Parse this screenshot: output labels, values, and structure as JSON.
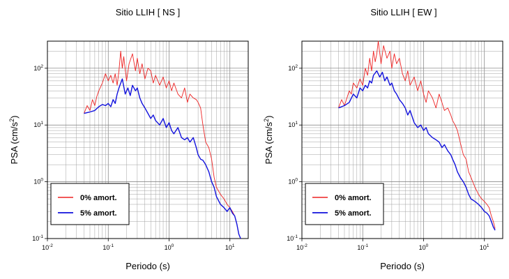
{
  "chart_data": [
    {
      "type": "line",
      "title": "Sitio LLIH [ NS ]",
      "xlabel": "Periodo (s)",
      "ylabel": "PSA (cm/s2)",
      "xscale": "log",
      "yscale": "log",
      "xlim": [
        0.01,
        20
      ],
      "ylim": [
        0.1,
        300
      ],
      "grid": true,
      "legend_position": "bottom-left",
      "x_ticks": [
        "10-2",
        "10-1",
        "100",
        "101"
      ],
      "y_ticks": [
        "10-1",
        "100",
        "101",
        "102"
      ],
      "series": [
        {
          "name": "0% amort.",
          "color": "#ee2222",
          "x": [
            0.04,
            0.045,
            0.05,
            0.055,
            0.06,
            0.065,
            0.07,
            0.08,
            0.09,
            0.1,
            0.11,
            0.12,
            0.13,
            0.14,
            0.15,
            0.16,
            0.17,
            0.18,
            0.2,
            0.22,
            0.25,
            0.28,
            0.3,
            0.33,
            0.36,
            0.4,
            0.45,
            0.5,
            0.55,
            0.6,
            0.7,
            0.8,
            0.9,
            1.0,
            1.1,
            1.2,
            1.4,
            1.6,
            1.8,
            2.0,
            2.2,
            2.5,
            2.8,
            3.0,
            3.3,
            3.6,
            4.0,
            4.5,
            5.0,
            5.5,
            6.0,
            7.0,
            8.0,
            9.0,
            10.0,
            11.0,
            12.0,
            13.0,
            14.0,
            15.0
          ],
          "values": [
            16,
            22,
            18,
            28,
            22,
            32,
            40,
            55,
            80,
            60,
            75,
            55,
            80,
            50,
            90,
            200,
            100,
            160,
            60,
            120,
            180,
            90,
            150,
            80,
            120,
            65,
            100,
            90,
            55,
            75,
            50,
            70,
            45,
            60,
            40,
            55,
            35,
            30,
            45,
            25,
            35,
            30,
            28,
            25,
            20,
            10,
            5,
            4,
            2.5,
            1.2,
            0.8,
            0.6,
            0.5,
            0.4,
            0.35,
            0.3,
            0.25,
            0.18,
            0.12,
            0.1
          ]
        },
        {
          "name": "5% amort.",
          "color": "#1111dd",
          "x": [
            0.04,
            0.05,
            0.06,
            0.07,
            0.08,
            0.09,
            0.1,
            0.11,
            0.12,
            0.13,
            0.14,
            0.15,
            0.17,
            0.19,
            0.21,
            0.23,
            0.25,
            0.28,
            0.3,
            0.33,
            0.36,
            0.4,
            0.45,
            0.5,
            0.55,
            0.6,
            0.7,
            0.8,
            0.9,
            1.0,
            1.1,
            1.2,
            1.4,
            1.6,
            1.8,
            2.0,
            2.2,
            2.5,
            2.8,
            3.0,
            3.3,
            3.6,
            4.0,
            4.5,
            5.0,
            5.5,
            6.0,
            7.0,
            8.0,
            9.0,
            10.0,
            11.0,
            12.0,
            13.0,
            14.0,
            15.0
          ],
          "values": [
            16,
            17,
            18,
            21,
            23,
            22,
            24,
            21,
            28,
            24,
            35,
            45,
            65,
            35,
            45,
            33,
            50,
            40,
            45,
            30,
            24,
            20,
            16,
            13,
            15,
            12,
            10,
            13,
            9,
            11,
            8,
            7,
            9,
            6,
            5.5,
            6,
            5,
            6,
            4,
            3,
            2.5,
            2.4,
            2,
            1.5,
            1,
            0.8,
            0.55,
            0.4,
            0.35,
            0.3,
            0.35,
            0.28,
            0.25,
            0.18,
            0.12,
            0.1
          ]
        }
      ]
    },
    {
      "type": "line",
      "title": "Sitio LLIH [ EW ]",
      "xlabel": "Periodo (s)",
      "ylabel": "PSA (cm/s2)",
      "xscale": "log",
      "yscale": "log",
      "xlim": [
        0.01,
        20
      ],
      "ylim": [
        0.1,
        300
      ],
      "grid": true,
      "legend_position": "bottom-left",
      "x_ticks": [
        "10-2",
        "10-1",
        "100",
        "101"
      ],
      "y_ticks": [
        "10-1",
        "100",
        "101",
        "102"
      ],
      "series": [
        {
          "name": "0% amort.",
          "color": "#ee2222",
          "x": [
            0.04,
            0.045,
            0.05,
            0.055,
            0.06,
            0.065,
            0.07,
            0.08,
            0.09,
            0.1,
            0.11,
            0.12,
            0.13,
            0.14,
            0.15,
            0.16,
            0.17,
            0.18,
            0.2,
            0.22,
            0.25,
            0.28,
            0.3,
            0.33,
            0.36,
            0.4,
            0.45,
            0.5,
            0.55,
            0.6,
            0.7,
            0.8,
            0.9,
            1.0,
            1.1,
            1.2,
            1.4,
            1.6,
            1.8,
            2.0,
            2.2,
            2.5,
            2.8,
            3.0,
            3.3,
            3.6,
            4.0,
            4.5,
            5.0,
            5.5,
            6.0,
            7.0,
            8.0,
            9.0,
            10.0,
            11.0,
            12.0,
            13.0,
            14.0,
            15.0
          ],
          "values": [
            20,
            28,
            22,
            30,
            40,
            35,
            55,
            45,
            65,
            50,
            100,
            75,
            150,
            90,
            200,
            130,
            180,
            300,
            120,
            250,
            150,
            200,
            100,
            180,
            120,
            150,
            80,
            60,
            90,
            50,
            70,
            40,
            60,
            35,
            25,
            40,
            30,
            20,
            35,
            25,
            18,
            20,
            15,
            12,
            10,
            8,
            5,
            3,
            2.5,
            1.5,
            1.2,
            0.8,
            0.6,
            0.5,
            0.45,
            0.4,
            0.35,
            0.25,
            0.2,
            0.15
          ]
        },
        {
          "name": "5% amort.",
          "color": "#1111dd",
          "x": [
            0.04,
            0.05,
            0.06,
            0.07,
            0.08,
            0.09,
            0.1,
            0.11,
            0.12,
            0.13,
            0.14,
            0.15,
            0.17,
            0.19,
            0.21,
            0.23,
            0.25,
            0.28,
            0.3,
            0.33,
            0.36,
            0.4,
            0.45,
            0.5,
            0.55,
            0.6,
            0.7,
            0.8,
            0.9,
            1.0,
            1.1,
            1.2,
            1.4,
            1.6,
            1.8,
            2.0,
            2.2,
            2.5,
            2.8,
            3.0,
            3.3,
            3.6,
            4.0,
            4.5,
            5.0,
            5.5,
            6.0,
            7.0,
            8.0,
            9.0,
            10.0,
            11.0,
            12.0,
            13.0,
            14.0,
            15.0
          ],
          "values": [
            20,
            22,
            25,
            35,
            30,
            45,
            40,
            50,
            45,
            60,
            55,
            75,
            90,
            70,
            85,
            60,
            70,
            50,
            55,
            40,
            35,
            28,
            24,
            20,
            15,
            18,
            11,
            9,
            10,
            8,
            9,
            7,
            6,
            5.5,
            5,
            4,
            4.5,
            3.5,
            3,
            2.5,
            2,
            1.5,
            1.2,
            1,
            0.8,
            0.6,
            0.5,
            0.45,
            0.4,
            0.35,
            0.3,
            0.28,
            0.25,
            0.2,
            0.16,
            0.14
          ]
        }
      ]
    }
  ]
}
